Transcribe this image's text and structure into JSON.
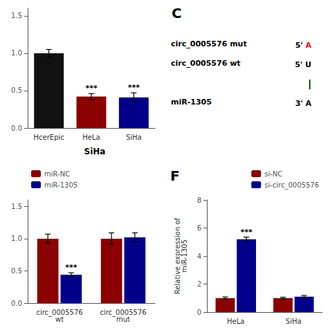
{
  "chart_data": [
    {
      "type": "bar",
      "subtitle": "SiHa",
      "categories": [
        "HcerEpic",
        "HeLa",
        "SiHa"
      ],
      "values": [
        1.0,
        0.42,
        0.41
      ],
      "errors": [
        0.05,
        0.04,
        0.06
      ],
      "colors": [
        "#111111",
        "#8B0000",
        "#00008B"
      ],
      "annotations": [
        {
          "category": "HeLa",
          "text": "***"
        },
        {
          "category": "SiHa",
          "text": "***"
        }
      ],
      "ylim": [
        0,
        1.6
      ],
      "yticks": [
        {
          "value": 0,
          "label": "0.0"
        },
        0.5,
        {
          "value": 1,
          "label": "1.0"
        },
        1.5
      ],
      "grid": false
    },
    {
      "type": "bar",
      "categories": [
        "circ_0005576\nwt",
        "circ_0005576\nmut"
      ],
      "series": [
        {
          "name": "miR-NC",
          "color": "#8B0000",
          "values": [
            1.0,
            1.0
          ],
          "errors": [
            0.07,
            0.09
          ]
        },
        {
          "name": "miR-1305",
          "color": "#00008B",
          "values": [
            0.44,
            1.02
          ],
          "errors": [
            0.03,
            0.07
          ]
        }
      ],
      "annotations": [
        {
          "category": "circ_0005576\nwt",
          "series": "miR-1305",
          "text": "***"
        }
      ],
      "ylim": [
        0,
        1.6
      ],
      "yticks": [
        {
          "value": 0,
          "label": "0.0"
        },
        0.5,
        {
          "value": 1,
          "label": "1.0"
        },
        1.5
      ],
      "legend": "upper left",
      "grid": false
    },
    {
      "type": "text",
      "title": "C",
      "annotations": [
        {
          "label": "circ_0005576 mut",
          "sequence": [
            {
              "text": "5' "
            },
            {
              "text": "A",
              "color": "red"
            }
          ]
        },
        {
          "label": "circ_0005576 wt",
          "sequence": [
            {
              "text": "5' U"
            }
          ]
        },
        {
          "sequence": [
            {
              "text": "|"
            }
          ]
        },
        {
          "label": "miR-1305",
          "sequence": [
            {
              "text": "3' A"
            }
          ]
        }
      ]
    },
    {
      "type": "bar",
      "title": "F",
      "ylabel": "Relative expression of\nmiR-1305",
      "categories": [
        "HeLa",
        "SiHa"
      ],
      "series": [
        {
          "name": "si-NC",
          "color": "#8B0000",
          "values": [
            1.0,
            1.0
          ],
          "errors": [
            0.08,
            0.06
          ]
        },
        {
          "name": "si-circ_0005576",
          "color": "#00008B",
          "values": [
            5.2,
            1.1
          ],
          "errors": [
            0.15,
            0.08
          ]
        }
      ],
      "annotations": [
        {
          "category": "HeLa",
          "series": "si-circ_0005576",
          "text": "***"
        }
      ],
      "ylim": [
        0,
        8
      ],
      "yticks": [
        0,
        2,
        4,
        6,
        8
      ],
      "legend": "upper right",
      "grid": false
    }
  ]
}
